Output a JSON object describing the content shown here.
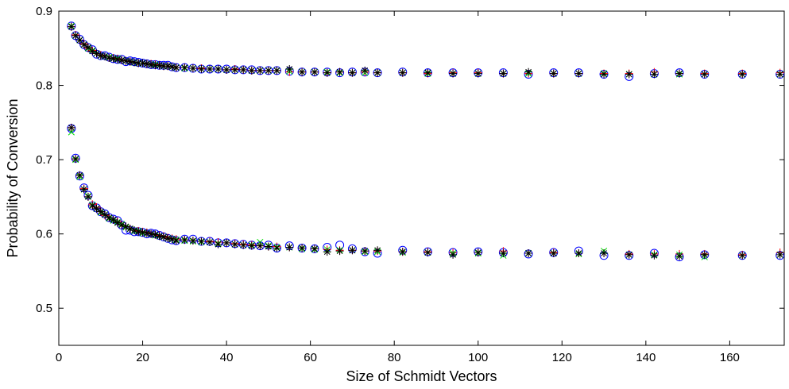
{
  "chart_data": {
    "type": "scatter",
    "title": "",
    "xlabel": "Size of Schmidt Vectors",
    "ylabel": "Probability of Conversion",
    "xlim": [
      0,
      173
    ],
    "ylim": [
      0.45,
      0.9
    ],
    "xticks": [
      0,
      20,
      40,
      60,
      80,
      100,
      120,
      140,
      160
    ],
    "yticks": [
      0.5,
      0.6,
      0.7,
      0.8,
      0.9
    ],
    "xtick_labels": [
      "0",
      "20",
      "40",
      "60",
      "80",
      "100",
      "120",
      "140",
      "160"
    ],
    "ytick_labels": [
      "0.5",
      "0.6",
      "0.7",
      "0.8",
      "0.9"
    ],
    "grid": false,
    "legend": null,
    "x": [
      3,
      4,
      5,
      6,
      7,
      8,
      9,
      10,
      11,
      12,
      13,
      14,
      15,
      16,
      17,
      18,
      19,
      20,
      21,
      22,
      23,
      24,
      25,
      26,
      27,
      28,
      30,
      32,
      34,
      36,
      38,
      40,
      42,
      44,
      46,
      48,
      50,
      52,
      55,
      58,
      61,
      64,
      67,
      70,
      73,
      76,
      82,
      88,
      94,
      100,
      106,
      112,
      118,
      124,
      130,
      136,
      142,
      148,
      154,
      163,
      172
    ],
    "series": [
      {
        "name": "",
        "marker": "circle",
        "color": "#0000ff",
        "values_upper": [
          0.88,
          0.867,
          0.862,
          0.855,
          0.851,
          0.848,
          0.842,
          0.84,
          0.84,
          0.838,
          0.836,
          0.835,
          0.835,
          0.832,
          0.833,
          0.832,
          0.831,
          0.83,
          0.829,
          0.828,
          0.828,
          0.827,
          0.827,
          0.827,
          0.825,
          0.824,
          0.824,
          0.823,
          0.822,
          0.822,
          0.822,
          0.822,
          0.821,
          0.821,
          0.821,
          0.82,
          0.82,
          0.82,
          0.819,
          0.818,
          0.818,
          0.818,
          0.817,
          0.818,
          0.818,
          0.817,
          0.818,
          0.817,
          0.817,
          0.817,
          0.817,
          0.815,
          0.817,
          0.817,
          0.815,
          0.812,
          0.816,
          0.817,
          0.815,
          0.815,
          0.815
        ],
        "values_lower": [
          0.742,
          0.702,
          0.678,
          0.662,
          0.652,
          0.638,
          0.635,
          0.63,
          0.627,
          0.622,
          0.62,
          0.618,
          0.612,
          0.605,
          0.605,
          0.603,
          0.603,
          0.602,
          0.6,
          0.601,
          0.6,
          0.598,
          0.596,
          0.594,
          0.592,
          0.591,
          0.593,
          0.593,
          0.59,
          0.59,
          0.588,
          0.588,
          0.587,
          0.586,
          0.585,
          0.584,
          0.585,
          0.581,
          0.584,
          0.581,
          0.58,
          0.582,
          0.585,
          0.58,
          0.576,
          0.574,
          0.578,
          0.576,
          0.575,
          0.576,
          0.575,
          0.573,
          0.575,
          0.577,
          0.571,
          0.571,
          0.574,
          0.569,
          0.572,
          0.571,
          0.571
        ]
      },
      {
        "name": "",
        "marker": "plus",
        "color": "#ff0000",
        "values_upper": [
          0.879,
          0.868,
          0.861,
          0.856,
          0.85,
          0.847,
          0.843,
          0.841,
          0.839,
          0.837,
          0.837,
          0.836,
          0.834,
          0.833,
          0.832,
          0.831,
          0.83,
          0.83,
          0.829,
          0.829,
          0.828,
          0.827,
          0.826,
          0.826,
          0.825,
          0.824,
          0.824,
          0.823,
          0.823,
          0.822,
          0.822,
          0.821,
          0.822,
          0.821,
          0.82,
          0.82,
          0.82,
          0.82,
          0.818,
          0.818,
          0.818,
          0.817,
          0.818,
          0.817,
          0.818,
          0.817,
          0.817,
          0.816,
          0.817,
          0.817,
          0.816,
          0.816,
          0.816,
          0.816,
          0.816,
          0.816,
          0.818,
          0.816,
          0.816,
          0.816,
          0.817
        ],
        "values_lower": [
          0.743,
          0.701,
          0.679,
          0.661,
          0.65,
          0.64,
          0.636,
          0.63,
          0.625,
          0.622,
          0.619,
          0.617,
          0.612,
          0.61,
          0.607,
          0.605,
          0.604,
          0.603,
          0.602,
          0.6,
          0.599,
          0.598,
          0.597,
          0.595,
          0.594,
          0.593,
          0.592,
          0.591,
          0.59,
          0.59,
          0.589,
          0.588,
          0.587,
          0.586,
          0.585,
          0.584,
          0.583,
          0.583,
          0.582,
          0.581,
          0.58,
          0.579,
          0.578,
          0.578,
          0.577,
          0.577,
          0.576,
          0.576,
          0.575,
          0.575,
          0.577,
          0.574,
          0.575,
          0.574,
          0.574,
          0.573,
          0.573,
          0.573,
          0.573,
          0.572,
          0.575
        ]
      },
      {
        "name": "",
        "marker": "x",
        "color": "#00dd00",
        "values_upper": [
          0.88,
          0.867,
          0.861,
          0.855,
          0.85,
          0.847,
          0.843,
          0.84,
          0.839,
          0.838,
          0.836,
          0.836,
          0.834,
          0.833,
          0.832,
          0.831,
          0.83,
          0.83,
          0.829,
          0.828,
          0.828,
          0.827,
          0.826,
          0.826,
          0.825,
          0.824,
          0.823,
          0.823,
          0.822,
          0.822,
          0.822,
          0.821,
          0.821,
          0.821,
          0.82,
          0.82,
          0.82,
          0.82,
          0.819,
          0.818,
          0.818,
          0.818,
          0.817,
          0.817,
          0.817,
          0.817,
          0.817,
          0.816,
          0.816,
          0.816,
          0.816,
          0.816,
          0.816,
          0.816,
          0.816,
          0.815,
          0.815,
          0.815,
          0.815,
          0.815,
          0.815
        ],
        "values_lower": [
          0.737,
          0.7,
          0.677,
          0.66,
          0.651,
          0.639,
          0.634,
          0.629,
          0.626,
          0.621,
          0.618,
          0.616,
          0.613,
          0.609,
          0.607,
          0.604,
          0.604,
          0.601,
          0.601,
          0.6,
          0.598,
          0.597,
          0.596,
          0.594,
          0.593,
          0.592,
          0.591,
          0.59,
          0.589,
          0.589,
          0.587,
          0.588,
          0.586,
          0.585,
          0.585,
          0.589,
          0.584,
          0.582,
          0.582,
          0.58,
          0.579,
          0.579,
          0.578,
          0.578,
          0.576,
          0.576,
          0.575,
          0.575,
          0.574,
          0.574,
          0.571,
          0.574,
          0.574,
          0.573,
          0.577,
          0.572,
          0.572,
          0.572,
          0.569,
          0.571,
          0.572
        ]
      },
      {
        "name": "",
        "marker": "star",
        "color": "#000000",
        "values_upper": [
          0.879,
          0.867,
          0.861,
          0.855,
          0.851,
          0.846,
          0.843,
          0.84,
          0.839,
          0.837,
          0.836,
          0.835,
          0.834,
          0.833,
          0.832,
          0.831,
          0.83,
          0.83,
          0.829,
          0.828,
          0.827,
          0.827,
          0.826,
          0.826,
          0.825,
          0.824,
          0.824,
          0.823,
          0.822,
          0.822,
          0.822,
          0.821,
          0.821,
          0.821,
          0.82,
          0.82,
          0.82,
          0.82,
          0.822,
          0.818,
          0.818,
          0.817,
          0.818,
          0.817,
          0.82,
          0.817,
          0.817,
          0.817,
          0.816,
          0.816,
          0.816,
          0.818,
          0.816,
          0.816,
          0.815,
          0.815,
          0.815,
          0.816,
          0.815,
          0.815,
          0.815
        ],
        "values_lower": [
          0.743,
          0.701,
          0.679,
          0.66,
          0.65,
          0.638,
          0.634,
          0.63,
          0.626,
          0.622,
          0.619,
          0.615,
          0.612,
          0.61,
          0.607,
          0.605,
          0.603,
          0.602,
          0.601,
          0.6,
          0.599,
          0.597,
          0.596,
          0.594,
          0.593,
          0.591,
          0.592,
          0.591,
          0.59,
          0.589,
          0.586,
          0.588,
          0.586,
          0.585,
          0.584,
          0.584,
          0.583,
          0.581,
          0.582,
          0.581,
          0.58,
          0.576,
          0.577,
          0.578,
          0.577,
          0.578,
          0.576,
          0.575,
          0.572,
          0.575,
          0.574,
          0.574,
          0.574,
          0.574,
          0.574,
          0.572,
          0.571,
          0.57,
          0.572,
          0.571,
          0.572
        ]
      }
    ]
  }
}
